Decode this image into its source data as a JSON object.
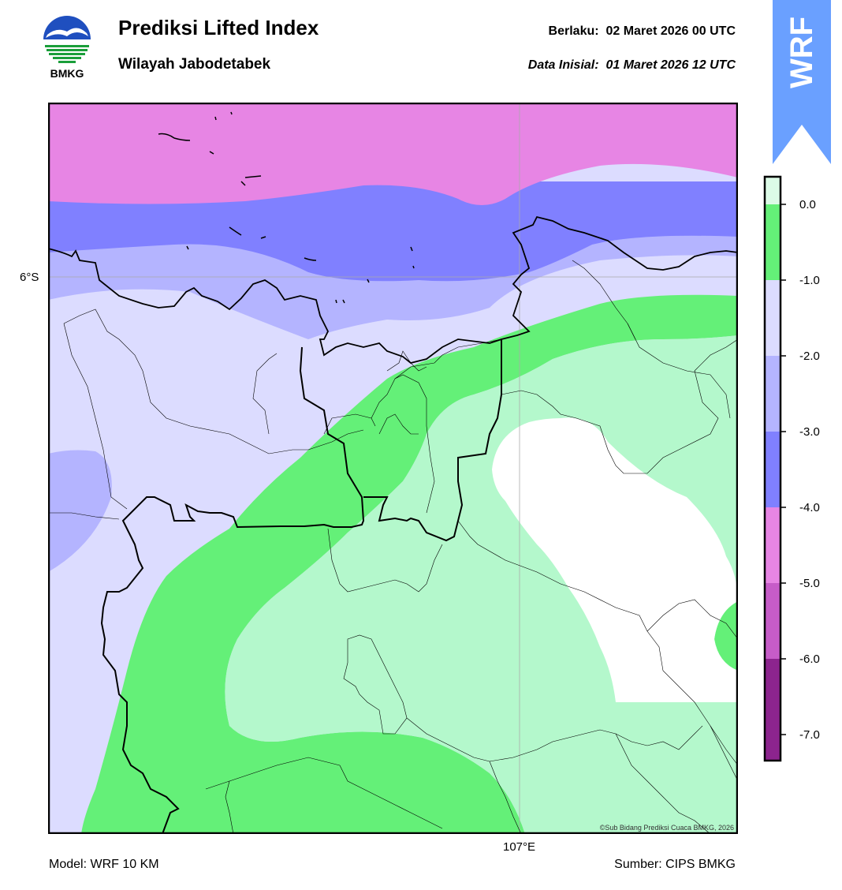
{
  "header": {
    "logo_text": "BMKG",
    "title": "Prediksi Lifted Index",
    "subtitle": "Wilayah Jabodetabek",
    "valid_label": "Berlaku:",
    "valid_value": "02 Maret 2026 00 UTC",
    "init_label": "Data Inisial:",
    "init_value": "01 Maret 2026 12 UTC"
  },
  "banner": {
    "text": "WRF",
    "color": "#6aa0ff"
  },
  "map": {
    "lat_label": "6°S",
    "lon_label": "107°E",
    "copyright": "©Sub Bidang Prediksi Cuaca BMKG, 2026",
    "fill_colors": {
      "lt_m5": "#e785e4",
      "m5_m4": "#8080ff",
      "m4_m3": "#b4b4ff",
      "m3_m2": "#dcdcff",
      "m2_m1": "#64f078",
      "m1_0": "#b4f8cc",
      "gt_0": "#ffffff"
    }
  },
  "colorbar": {
    "ticks": [
      "0.0",
      "-1.0",
      "-2.0",
      "-3.0",
      "-4.0",
      "-5.0",
      "-6.0",
      "-7.0"
    ],
    "colors": [
      "#dcfbe7",
      "#64f078",
      "#dcdcff",
      "#b4b4ff",
      "#8080ff",
      "#e785e4",
      "#c65cc8",
      "#8c248e"
    ]
  },
  "footer": {
    "model": "Model: WRF 10 KM",
    "source": "Sumber: CIPS BMKG"
  }
}
